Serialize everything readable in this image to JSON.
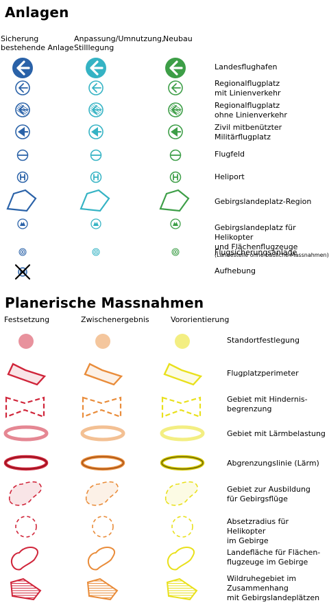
{
  "section1": {
    "title": "Anlagen",
    "columns": [
      "Sicherung\nbestehende Anlage",
      "Anpassung/Umnutzung,\nStilllegung",
      "Neubau"
    ],
    "colors": {
      "bestehend": "#2a62a8",
      "anpassung": "#35b3c4",
      "neubau": "#3d9e47"
    },
    "rows": [
      {
        "label": "Landesflughafen",
        "icon": "airport-large-icon"
      },
      {
        "label": "Regionalflugplatz\nmit Linienverkehr",
        "icon": "airfield-regional-icon"
      },
      {
        "label": "Regionalflugplatz\nohne Linienverkehr",
        "icon": "airfield-regional-hatched-icon"
      },
      {
        "label": "Zivil mitbenützter\nMilitärflugplatz",
        "icon": "military-airfield-icon"
      },
      {
        "label": "Flugfeld",
        "icon": "airfield-icon"
      },
      {
        "label": "Heliport",
        "icon": "heliport-icon"
      },
      {
        "label": "Gebirgslandeplatz-Region",
        "icon": "mountain-region-polygon-icon"
      },
      {
        "label": "Gebirgslandeplatz für Helikopter\nund Flächenflugzeuge",
        "note": "(Landestelle ohne bauliche Massnahmen)",
        "icon": "mountain-landing-icon"
      },
      {
        "label": "Flugsicherungsanlage",
        "icon": "air-navigation-icon"
      },
      {
        "label": "Aufhebung",
        "icon": "abolition-cross-icon"
      }
    ]
  },
  "section2": {
    "title": "Planerische Massnahmen",
    "columns": [
      "Festsetzung",
      "Zwischenergebnis",
      "Vororientierung"
    ],
    "colors": {
      "festsetzung": "#d0253a",
      "zwischen": "#e98c3a",
      "vor": "#e9e01c"
    },
    "rows": [
      {
        "label": "Standortfestlegung",
        "icon": "site-dot-icon"
      },
      {
        "label": "Flugplatzperimeter",
        "icon": "perimeter-polygon-icon"
      },
      {
        "label": "Gebiet mit Hindernis-\nbegrenzung",
        "icon": "obstacle-zone-icon"
      },
      {
        "label": "Gebiet mit Lärmbelastung",
        "icon": "noise-ring-icon"
      },
      {
        "label": "Abgrenzungslinie (Lärm)",
        "icon": "noise-boundary-icon"
      },
      {
        "label": "Gebiet zur Ausbildung\nfür Gebirgsflüge",
        "icon": "training-area-icon"
      },
      {
        "label": "Absetzradius für Helikopter\nim Gebirge",
        "icon": "drop-radius-icon"
      },
      {
        "label": "Landefläche für Flächen-\nflugzeuge im Gebirge",
        "icon": "landing-area-icon"
      },
      {
        "label": "Wildruhegebiet im\nZusammenhang\nmit Gebirgslandeplätzen",
        "icon": "wildlife-area-icon"
      }
    ]
  }
}
